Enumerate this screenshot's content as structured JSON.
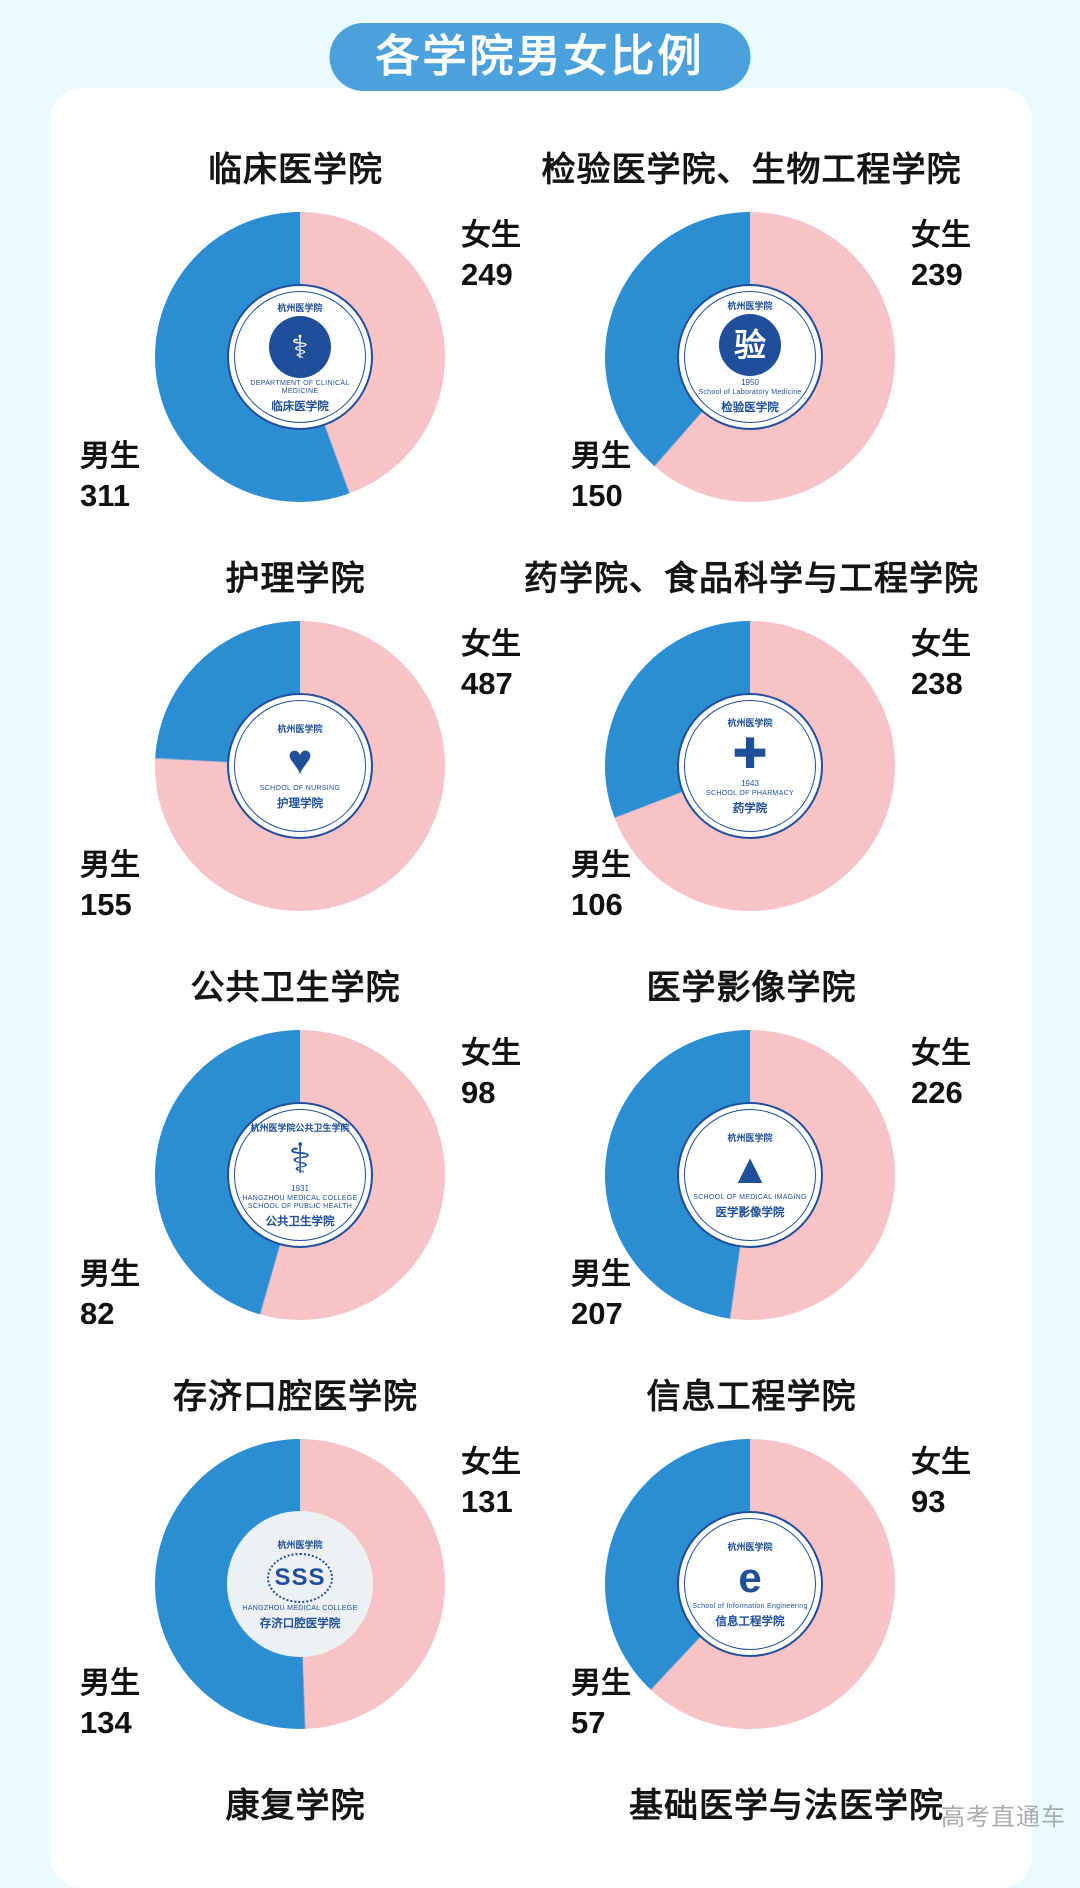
{
  "page": {
    "title": "各学院男女比例",
    "watermark": "高考直通车"
  },
  "legend": {
    "female_label": "女生",
    "male_label": "男生",
    "position": "labels beside each pie: female top-right, male bottom-left"
  },
  "colors": {
    "background": "#e9fbfe",
    "card": "#ffffff",
    "badge_blue": "#4aa1db",
    "male_blue": "#2b8ed3",
    "female_pink": "#f8c3c7",
    "logo_navy": "#1f4e9b",
    "title_text": "#151515",
    "watermark_gray": "#aaadb0"
  },
  "chart_data": [
    {
      "type": "pie",
      "title": "临床医学院",
      "slices": [
        {
          "label": "女生",
          "value": 249
        },
        {
          "label": "男生",
          "value": 311
        }
      ],
      "logo": {
        "style": "solid",
        "top": "杭州医学院",
        "emblem_glyph": "⚕",
        "ring": "DEPARTMENT OF CLINICAL MEDICINE",
        "name": "临床医学院"
      }
    },
    {
      "type": "pie",
      "title": "检验医学院、生物工程学院",
      "slices": [
        {
          "label": "女生",
          "value": 239
        },
        {
          "label": "男生",
          "value": 150
        }
      ],
      "logo": {
        "style": "solid",
        "top": "杭州医学院",
        "emblem_glyph": "验",
        "year": "1950",
        "ring": "School of Laboratory Medicine",
        "name": "检验医学院"
      }
    },
    {
      "type": "pie",
      "title": "护理学院",
      "slices": [
        {
          "label": "女生",
          "value": 487
        },
        {
          "label": "男生",
          "value": 155
        }
      ],
      "logo": {
        "style": "line",
        "top": "杭州医学院",
        "emblem_glyph": "♥",
        "ring": "SCHOOL OF NURSING",
        "name": "护理学院"
      }
    },
    {
      "type": "pie",
      "title": "药学院、食品科学与工程学院",
      "slices": [
        {
          "label": "女生",
          "value": 238
        },
        {
          "label": "男生",
          "value": 106
        }
      ],
      "logo": {
        "style": "line",
        "top": "杭州医学院",
        "emblem_glyph": "✚",
        "year": "1943",
        "ring": "SCHOOL OF PHARMACY",
        "name": "药学院"
      }
    },
    {
      "type": "pie",
      "title": "公共卫生学院",
      "slices": [
        {
          "label": "女生",
          "value": 98
        },
        {
          "label": "男生",
          "value": 82
        }
      ],
      "logo": {
        "style": "line",
        "top": "杭州医学院公共卫生学院",
        "emblem_glyph": "⚕",
        "year": "1931",
        "ring": "HANGZHOU MEDICAL COLLEGE SCHOOL OF PUBLIC HEALTH",
        "name": "公共卫生学院"
      }
    },
    {
      "type": "pie",
      "title": "医学影像学院",
      "slices": [
        {
          "label": "女生",
          "value": 226
        },
        {
          "label": "男生",
          "value": 207
        }
      ],
      "logo": {
        "style": "line",
        "top": "杭州医学院",
        "emblem_glyph": "▲",
        "ring": "SCHOOL OF MEDICAL IMAGING",
        "name": "医学影像学院"
      }
    },
    {
      "type": "pie",
      "title": "存济口腔医学院",
      "slices": [
        {
          "label": "女生",
          "value": 131
        },
        {
          "label": "男生",
          "value": 134
        }
      ],
      "logo": {
        "style": "gray",
        "top": "杭州医学院",
        "emblem_glyph": "SSS",
        "ring": "HANGZHOU MEDICAL COLLEGE",
        "name": "存济口腔医学院"
      }
    },
    {
      "type": "pie",
      "title": "信息工程学院",
      "slices": [
        {
          "label": "女生",
          "value": 93
        },
        {
          "label": "男生",
          "value": 57
        }
      ],
      "logo": {
        "style": "line",
        "top": "杭州医学院",
        "emblem_glyph": "e",
        "ring": "School of Information Engineering",
        "name": "信息工程学院"
      }
    },
    {
      "type": "pie",
      "title": "康复学院",
      "cut_off": true
    },
    {
      "type": "pie",
      "title": "基础医学与法医学院",
      "cut_off": true
    }
  ]
}
